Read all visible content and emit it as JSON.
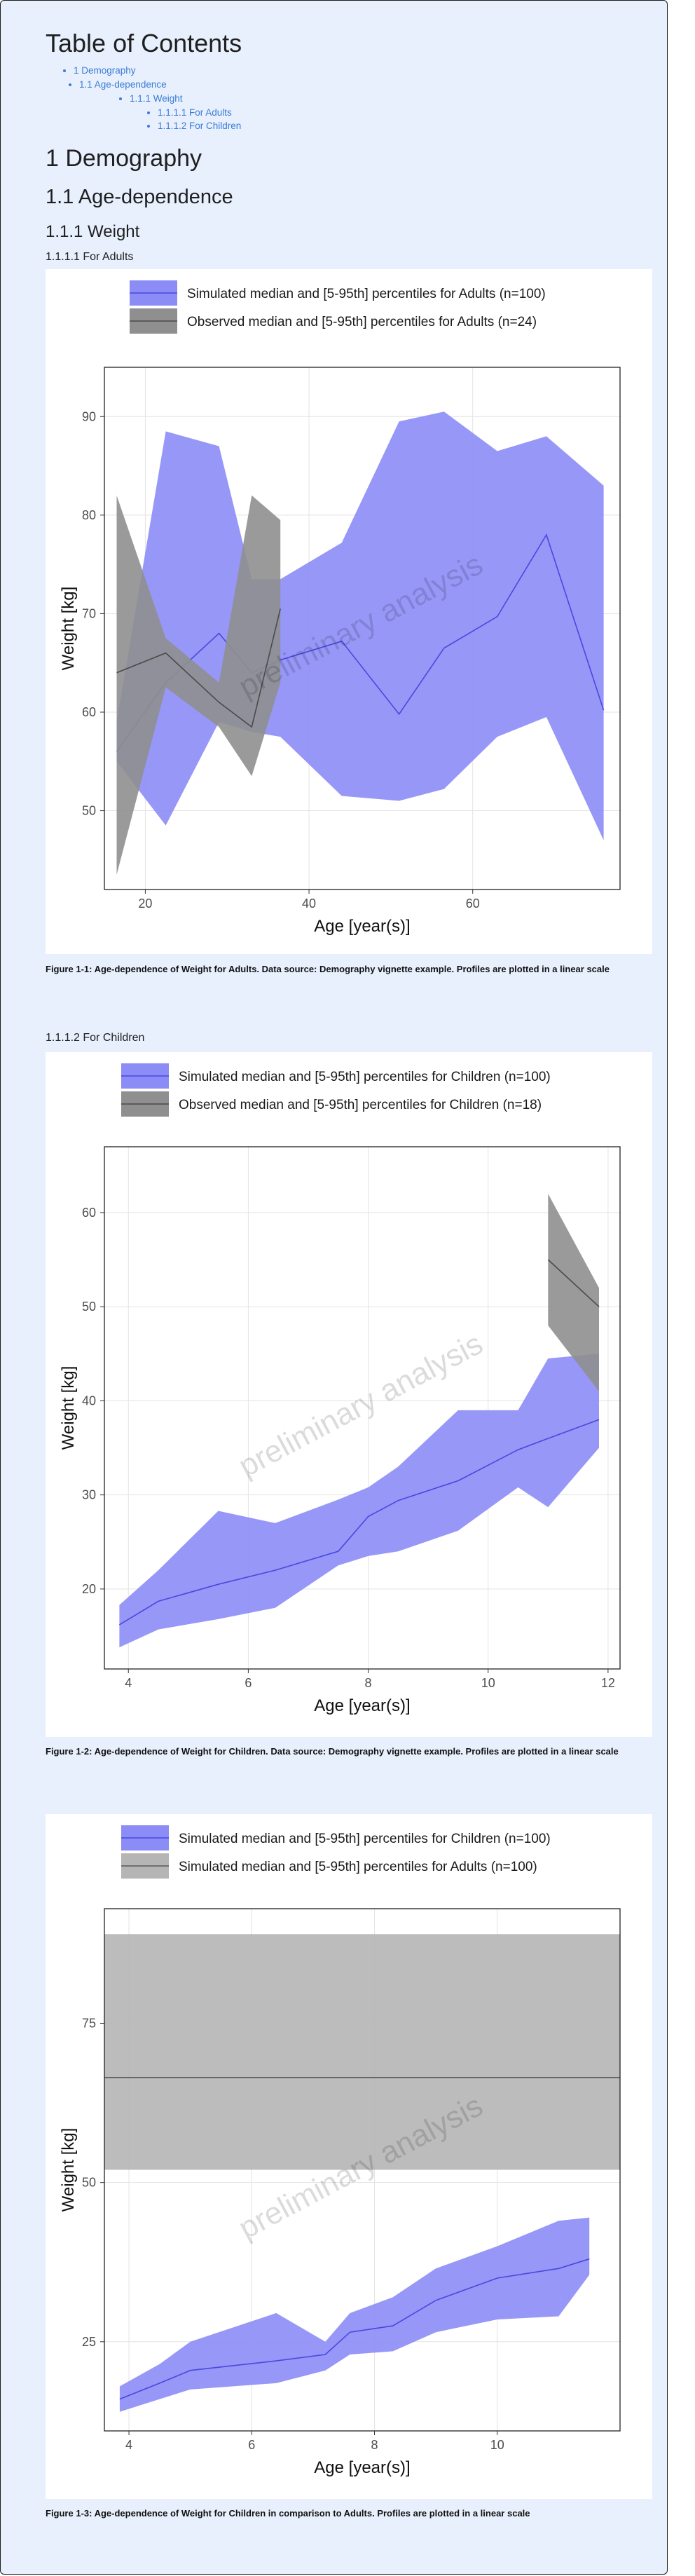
{
  "toc": {
    "title": "Table of Contents",
    "items": [
      {
        "label": "1 Demography",
        "level": 1
      },
      {
        "label": "1.1 Age-dependence",
        "level": 2
      },
      {
        "label": "1.1.1 Weight",
        "level": 3
      },
      {
        "label": "1.1.1.1 For Adults",
        "level": 4
      },
      {
        "label": "1.1.1.2 For Children",
        "level": 4
      }
    ]
  },
  "headings": {
    "h1": "1 Demography",
    "h2": "1.1 Age-dependence",
    "h3": "1.1.1 Weight",
    "h4_adults": "1.1.1.1 For Adults",
    "h4_children": "1.1.1.2 For Children"
  },
  "watermark": "preliminary analysis",
  "captions": {
    "fig1": "Figure 1-1: Age-dependence of Weight for Adults. Data source: Demography vignette example. Profiles are plotted in a linear scale",
    "fig2": "Figure 1-2: Age-dependence of Weight for Children. Data source: Demography vignette example. Profiles are plotted in a linear scale",
    "fig3": "Figure 1-3: Age-dependence of Weight for Children in comparison to Adults. Profiles are plotted in a linear scale"
  },
  "chart_data": [
    {
      "type": "area",
      "xlabel": "Age [year(s)]",
      "ylabel": "Weight [kg]",
      "xlim": [
        15,
        78
      ],
      "ylim": [
        42,
        95
      ],
      "xticks": [
        20,
        40,
        60
      ],
      "yticks": [
        50,
        60,
        70,
        80,
        90
      ],
      "grid": true,
      "legend_position": "top",
      "series": [
        {
          "name": "Simulated median and [5-95th] percentiles for Adults (n=100)",
          "fill": "#8c8cf7",
          "line": "#4848e0",
          "x": [
            16.5,
            22.5,
            29,
            33,
            36.5,
            44,
            51,
            56.5,
            63,
            69,
            76
          ],
          "median": [
            56,
            63,
            68,
            64,
            65.3,
            67.2,
            59.8,
            66.5,
            69.7,
            78,
            60.2
          ],
          "lower": [
            55,
            48.5,
            59,
            58,
            57.5,
            51.5,
            51,
            52.2,
            57.5,
            59.5,
            47
          ],
          "upper": [
            59,
            88.5,
            87,
            73.5,
            73.5,
            77.2,
            89.5,
            90.5,
            86.5,
            88,
            83
          ]
        },
        {
          "name": "Observed median and [5-95th] percentiles for Adults (n=24)",
          "fill": "#8f8f8f",
          "line": "#4a4a4a",
          "x": [
            16.5,
            22.5,
            29,
            33,
            36.5
          ],
          "median": [
            64,
            66,
            61,
            58.5,
            70.5
          ],
          "lower": [
            43.5,
            62.5,
            58.5,
            53.5,
            63
          ],
          "upper": [
            82,
            67.5,
            63,
            82,
            79.5
          ]
        }
      ]
    },
    {
      "type": "area",
      "xlabel": "Age [year(s)]",
      "ylabel": "Weight [kg]",
      "xlim": [
        3.6,
        12.2
      ],
      "ylim": [
        11.5,
        67
      ],
      "xticks": [
        4,
        6,
        8,
        10,
        12
      ],
      "yticks": [
        20,
        30,
        40,
        50,
        60
      ],
      "grid": true,
      "legend_position": "top",
      "series": [
        {
          "name": "Simulated median and [5-95th] percentiles for Children (n=100)",
          "fill": "#8c8cf7",
          "line": "#4848e0",
          "x": [
            3.85,
            4.5,
            5.5,
            6.45,
            7.5,
            8,
            8.5,
            9.5,
            10.5,
            11,
            11.85
          ],
          "median": [
            16.2,
            18.7,
            20.5,
            22,
            24,
            27.7,
            29.4,
            31.5,
            34.8,
            36,
            38
          ],
          "lower": [
            13.8,
            15.7,
            16.8,
            18,
            22.5,
            23.5,
            24,
            26.2,
            30.8,
            28.7,
            35
          ],
          "upper": [
            18.3,
            22,
            28.3,
            27,
            29.5,
            30.8,
            33,
            39,
            39,
            44.5,
            45
          ]
        },
        {
          "name": "Observed median and [5-95th] percentiles for Children (n=18)",
          "fill": "#8f8f8f",
          "line": "#4a4a4a",
          "x": [
            11,
            11.85
          ],
          "median": [
            55,
            50
          ],
          "lower": [
            48,
            41
          ],
          "upper": [
            62,
            52
          ]
        }
      ]
    },
    {
      "type": "area",
      "xlabel": "Age [year(s)]",
      "ylabel": "Weight [kg]",
      "xlim": [
        3.6,
        12
      ],
      "ylim": [
        11,
        93
      ],
      "xticks": [
        4,
        6,
        8,
        10
      ],
      "yticks": [
        25,
        50,
        75
      ],
      "grid": true,
      "legend_position": "top",
      "series": [
        {
          "name": "Simulated median and [5-95th] percentiles for Children (n=100)",
          "fill": "#8c8cf7",
          "line": "#4848e0",
          "x": [
            3.85,
            4.5,
            5,
            6.4,
            7.2,
            7.6,
            8.3,
            9,
            10,
            11,
            11.5
          ],
          "median": [
            16,
            18.5,
            20.5,
            22,
            23,
            26.5,
            27.5,
            31.5,
            35,
            36.5,
            38
          ],
          "lower": [
            14,
            16,
            17.5,
            18.5,
            20.5,
            23,
            23.5,
            26.5,
            28.5,
            29,
            35.5
          ],
          "upper": [
            18,
            21.5,
            25,
            29.5,
            25,
            29.5,
            32,
            36.5,
            40,
            44,
            44.5
          ]
        },
        {
          "name": "Simulated median and [5-95th] percentiles for Adults (n=100)",
          "fill": "#b5b5b5",
          "line": "#5a5a5a",
          "x": [
            3.6,
            12
          ],
          "median": [
            66.5,
            66.5
          ],
          "lower": [
            52,
            52
          ],
          "upper": [
            89,
            89
          ]
        }
      ]
    }
  ]
}
